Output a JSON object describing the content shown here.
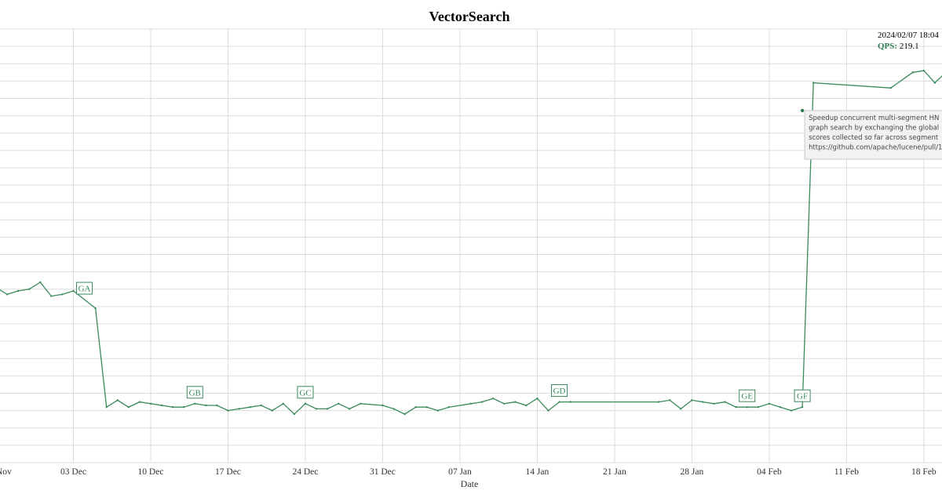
{
  "chart_data": {
    "type": "line",
    "title": "VectorSearch",
    "xlabel": "Date",
    "ylabel": "",
    "x_axis": "date",
    "xlim": [
      "2023-11-26",
      "2024-02-20"
    ],
    "ylim": [
      50,
      300
    ],
    "grid": true,
    "x_tick_labels": [
      "Nov",
      "03 Dec",
      "10 Dec",
      "17 Dec",
      "24 Dec",
      "31 Dec",
      "07 Jan",
      "14 Jan",
      "21 Jan",
      "28 Jan",
      "04 Feb",
      "11 Feb",
      "18 Feb"
    ],
    "series": [
      {
        "color": "#3a8a5c",
        "x": [
          "2023-11-26",
          "2023-11-27",
          "2023-11-28",
          "2023-11-29",
          "2023-11-30",
          "2023-12-01",
          "2023-12-02",
          "2023-12-03",
          "2023-12-05",
          "2023-12-06",
          "2023-12-07",
          "2023-12-08",
          "2023-12-09",
          "2023-12-10",
          "2023-12-11",
          "2023-12-12",
          "2023-12-13",
          "2023-12-14",
          "2023-12-15",
          "2023-12-16",
          "2023-12-17",
          "2023-12-18",
          "2023-12-19",
          "2023-12-20",
          "2023-12-21",
          "2023-12-22",
          "2023-12-23",
          "2023-12-24",
          "2023-12-25",
          "2023-12-26",
          "2023-12-27",
          "2023-12-28",
          "2023-12-29",
          "2023-12-31",
          "2024-01-01",
          "2024-01-02",
          "2024-01-03",
          "2024-01-04",
          "2024-01-05",
          "2024-01-06",
          "2024-01-08",
          "2024-01-09",
          "2024-01-10",
          "2024-01-11",
          "2024-01-12",
          "2024-01-13",
          "2024-01-14",
          "2024-01-15",
          "2024-01-16",
          "2024-01-17",
          "2024-01-25",
          "2024-01-26",
          "2024-01-27",
          "2024-01-28",
          "2024-01-29",
          "2024-01-30",
          "2024-01-31",
          "2024-02-01",
          "2024-02-02",
          "2024-02-03",
          "2024-02-04",
          "2024-02-05",
          "2024-02-06",
          "2024-02-07",
          "2024-02-08",
          "2024-02-15",
          "2024-02-17",
          "2024-02-18",
          "2024-02-19",
          "2024-02-20"
        ],
        "y": [
          151,
          147,
          149,
          150,
          154,
          146,
          147,
          149,
          139,
          82,
          86,
          82,
          85,
          84,
          83,
          82,
          82,
          84,
          83,
          83,
          80,
          81,
          82,
          83,
          80,
          84,
          78,
          84,
          81,
          81,
          84,
          81,
          84,
          83,
          81,
          78,
          82,
          82,
          80,
          82,
          84,
          85,
          87,
          84,
          85,
          83,
          87,
          80,
          85,
          85,
          85,
          86,
          81,
          86,
          85,
          84,
          85,
          82,
          82,
          82,
          84,
          82,
          80,
          82,
          269,
          266,
          275,
          276,
          269,
          275
        ]
      }
    ],
    "annotations": [
      {
        "label": "GA",
        "date": "2023-12-04"
      },
      {
        "label": "GB",
        "date": "2023-12-14"
      },
      {
        "label": "GC",
        "date": "2023-12-24"
      },
      {
        "label": "GD",
        "date": "2024-01-16"
      },
      {
        "label": "GE",
        "date": "2024-02-02"
      },
      {
        "label": "GF",
        "date": "2024-02-07"
      }
    ],
    "highlight": {
      "date_text": "2024/02/07 18:04",
      "qps_label": "QPS",
      "qps_value": "219.1"
    },
    "tooltip": [
      "Speedup concurrent multi-segment HN",
      "graph search by exchanging the global",
      "scores collected so far across segment",
      "https://github.com/apache/lucene/pull/1"
    ]
  }
}
